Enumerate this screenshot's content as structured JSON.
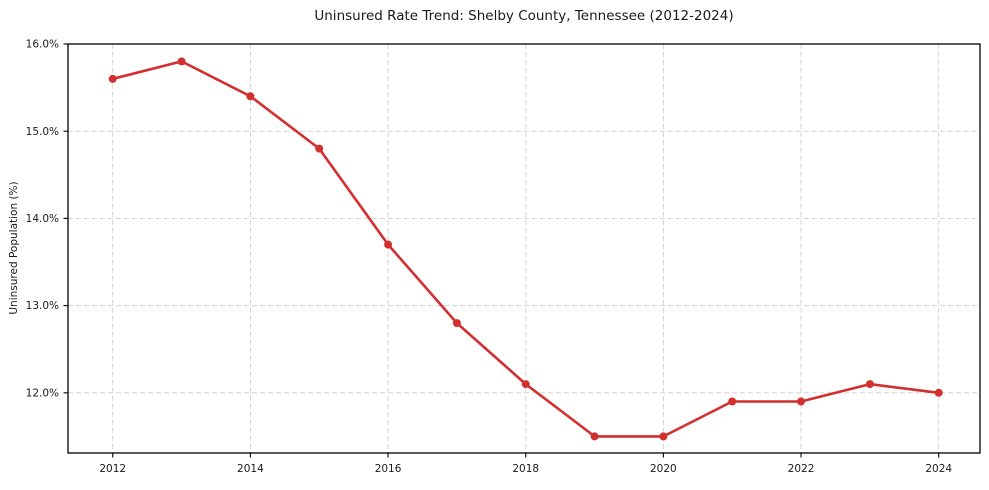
{
  "chart_data": {
    "type": "line",
    "title": "Uninsured Rate Trend: Shelby County, Tennessee (2012-2024)",
    "xlabel": "",
    "ylabel": "Uninsured Population (%)",
    "x": [
      2012,
      2013,
      2014,
      2015,
      2016,
      2017,
      2018,
      2019,
      2020,
      2021,
      2022,
      2023,
      2024
    ],
    "series": [
      {
        "name": "Uninsured Population (%)",
        "values": [
          15.6,
          15.8,
          15.4,
          14.8,
          13.7,
          12.8,
          12.1,
          11.5,
          11.5,
          11.9,
          11.9,
          12.1,
          12.0
        ]
      }
    ],
    "xticks": [
      {
        "value": 2012,
        "label": "2012"
      },
      {
        "value": 2014,
        "label": "2014"
      },
      {
        "value": 2016,
        "label": "2016"
      },
      {
        "value": 2018,
        "label": "2018"
      },
      {
        "value": 2020,
        "label": "2020"
      },
      {
        "value": 2022,
        "label": "2022"
      },
      {
        "value": 2024,
        "label": "2024"
      }
    ],
    "yticks": [
      {
        "value": 12,
        "label": "12.0%"
      },
      {
        "value": 13,
        "label": "13.0%"
      },
      {
        "value": 14,
        "label": "14.0%"
      },
      {
        "value": 15,
        "label": "15.0%"
      },
      {
        "value": 16,
        "label": "16.0%"
      }
    ],
    "xlim": [
      2011.35,
      2024.6
    ],
    "ylim": [
      11.31,
      16.0
    ],
    "grid": true,
    "legend": false,
    "marker": "circle",
    "colors": {
      "line": "#d32f2f",
      "grid": "#cfcfcf",
      "axis": "#000000",
      "text": "#1a1a1a",
      "background": "#ffffff"
    }
  }
}
